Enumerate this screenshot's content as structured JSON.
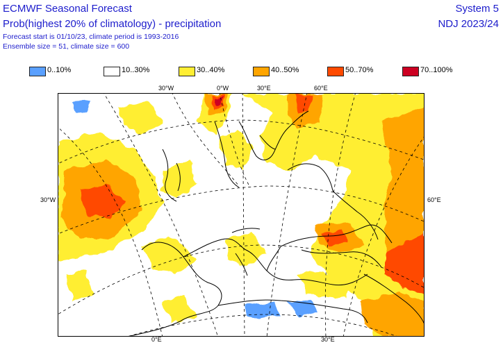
{
  "header": {
    "title": "ECMWF Seasonal Forecast",
    "subtitle": "Prob(highest 20% of climatology) - precipitation",
    "info_line1": "Forecast start is 01/10/23, climate period is 1993-2016",
    "info_line2": "Ensemble size = 51, climate size = 600",
    "system": "System 5",
    "period": "NDJ 2023/24"
  },
  "legend": [
    {
      "label": "0..10%",
      "color": "#5aa0ff"
    },
    {
      "label": "10..30%",
      "color": "#ffffff"
    },
    {
      "label": "30..40%",
      "color": "#ffee33"
    },
    {
      "label": "40..50%",
      "color": "#ffa500"
    },
    {
      "label": "50..70%",
      "color": "#ff4a00"
    },
    {
      "label": "70..100%",
      "color": "#cc0022"
    }
  ],
  "axis_labels": {
    "top": [
      "30°W",
      "0°W",
      "30°E",
      "60°E"
    ],
    "left": "30°W",
    "right": "60°E",
    "bottom": [
      "0°E",
      "30°E"
    ]
  }
}
